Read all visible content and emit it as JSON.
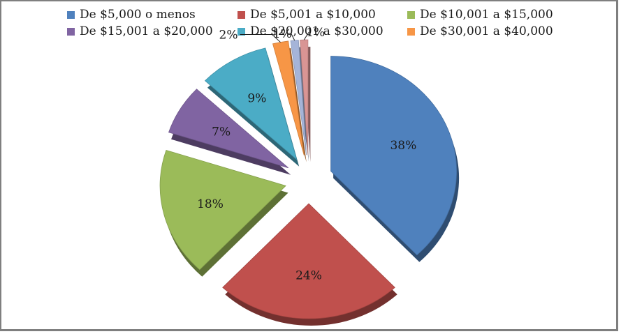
{
  "chart_data": {
    "type": "pie",
    "title": "",
    "legend_position": "top",
    "categories": [
      "De $5,000 o menos",
      "De $5,001 a $10,000",
      "De $10,001 a $15,000",
      "De $15,001 a $20,000",
      "De $20,001 a $30,000",
      "De $30,001 a $40,000",
      "",
      ""
    ],
    "values": [
      38,
      24,
      18,
      7,
      9,
      2,
      1,
      1
    ],
    "data_labels": [
      "38%",
      "24%",
      "18%",
      "7%",
      "9%",
      "2%",
      "1%",
      "1%"
    ],
    "colors": [
      "#4F81BD",
      "#C0504D",
      "#9BBB59",
      "#8064A2",
      "#4BACC6",
      "#F79646",
      "#A5B4D8",
      "#D99594"
    ],
    "exploded": true,
    "three_d": true
  }
}
